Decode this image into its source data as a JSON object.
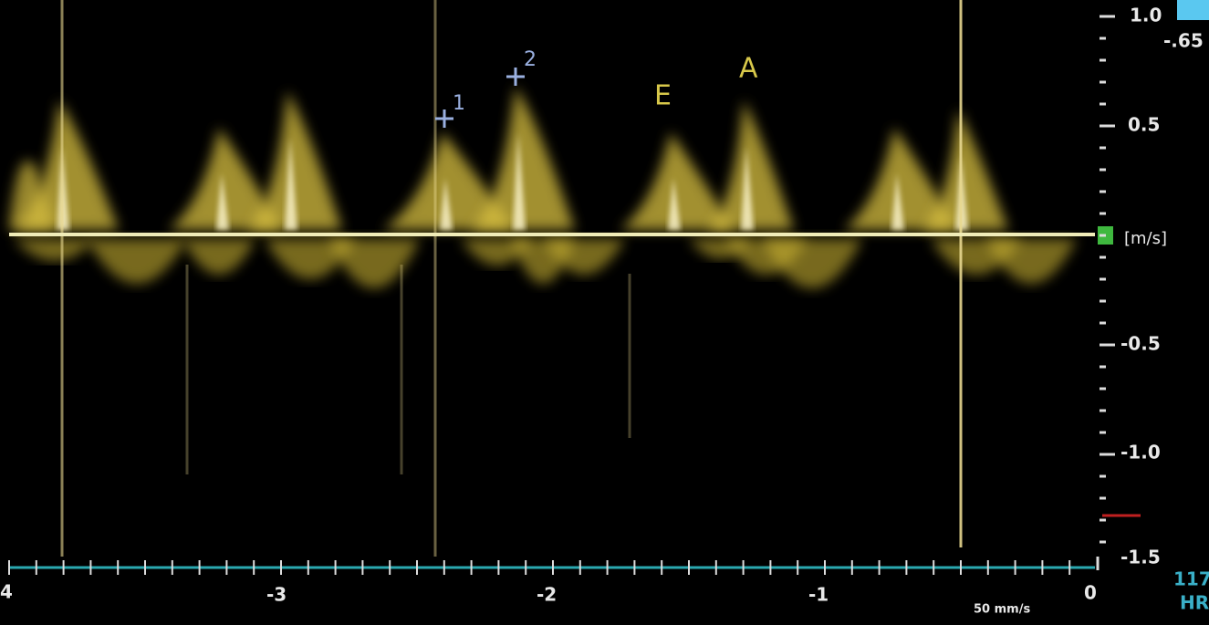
{
  "scale": {
    "top": "1.0",
    "color_bar_value": "-.65",
    "ticks": [
      "0.5",
      "-0.5",
      "-1.0",
      "-1.5"
    ],
    "unit": "[m/s]"
  },
  "time_axis": {
    "ticks": [
      "4",
      "-3",
      "-2",
      "-1",
      "0"
    ],
    "sweep_speed": "50 mm/s"
  },
  "heart_rate": {
    "value": "117",
    "label": "HR"
  },
  "markers": [
    "1",
    "2",
    "E",
    "A"
  ]
}
